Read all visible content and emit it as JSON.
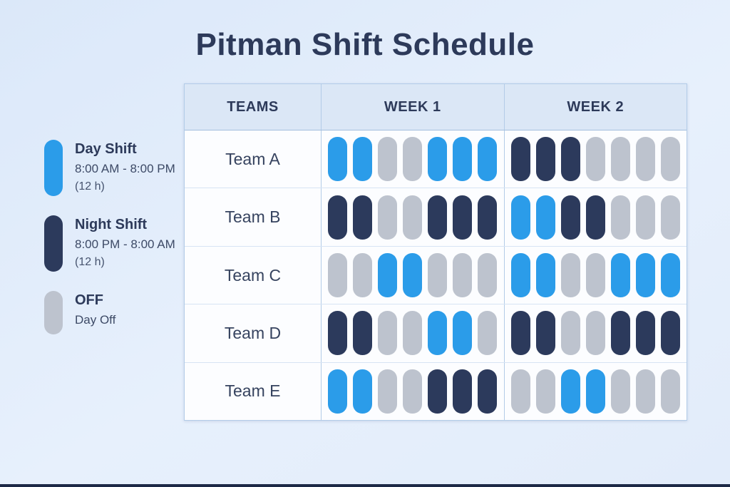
{
  "title": "Pitman Shift Schedule",
  "colors": {
    "day": "#2B9CE9",
    "night": "#2C3A5C",
    "off": "#BDC3CE",
    "ink": "#2D3A5A"
  },
  "legend": [
    {
      "type": "day",
      "label": "Day Shift",
      "time": "8:00 AM - 8:00 PM",
      "duration": "(12 h)"
    },
    {
      "type": "night",
      "label": "Night Shift",
      "time": "8:00 PM - 8:00 AM",
      "duration": "(12 h)"
    },
    {
      "type": "off",
      "label": "OFF",
      "time": "Day Off",
      "duration": ""
    }
  ],
  "table": {
    "headers": [
      "TEAMS",
      "WEEK 1",
      "WEEK 2"
    ],
    "rows": [
      {
        "team": "Team A",
        "week1": [
          "day",
          "day",
          "off",
          "off",
          "day",
          "day",
          "day"
        ],
        "week2": [
          "night",
          "night",
          "night",
          "off",
          "off",
          "off",
          "off"
        ]
      },
      {
        "team": "Team B",
        "week1": [
          "night",
          "night",
          "off",
          "off",
          "night",
          "night",
          "night"
        ],
        "week2": [
          "day",
          "day",
          "night",
          "night",
          "off",
          "off",
          "off"
        ]
      },
      {
        "team": "Team C",
        "week1": [
          "off",
          "off",
          "day",
          "day",
          "off",
          "off",
          "off"
        ],
        "week2": [
          "day",
          "day",
          "off",
          "off",
          "day",
          "day",
          "day"
        ]
      },
      {
        "team": "Team D",
        "week1": [
          "night",
          "night",
          "off",
          "off",
          "day",
          "day",
          "off"
        ],
        "week2": [
          "night",
          "night",
          "off",
          "off",
          "night",
          "night",
          "night"
        ]
      },
      {
        "team": "Team E",
        "week1": [
          "day",
          "day",
          "off",
          "off",
          "night",
          "night",
          "night"
        ],
        "week2": [
          "off",
          "off",
          "day",
          "day",
          "off",
          "off",
          "off"
        ]
      }
    ]
  }
}
